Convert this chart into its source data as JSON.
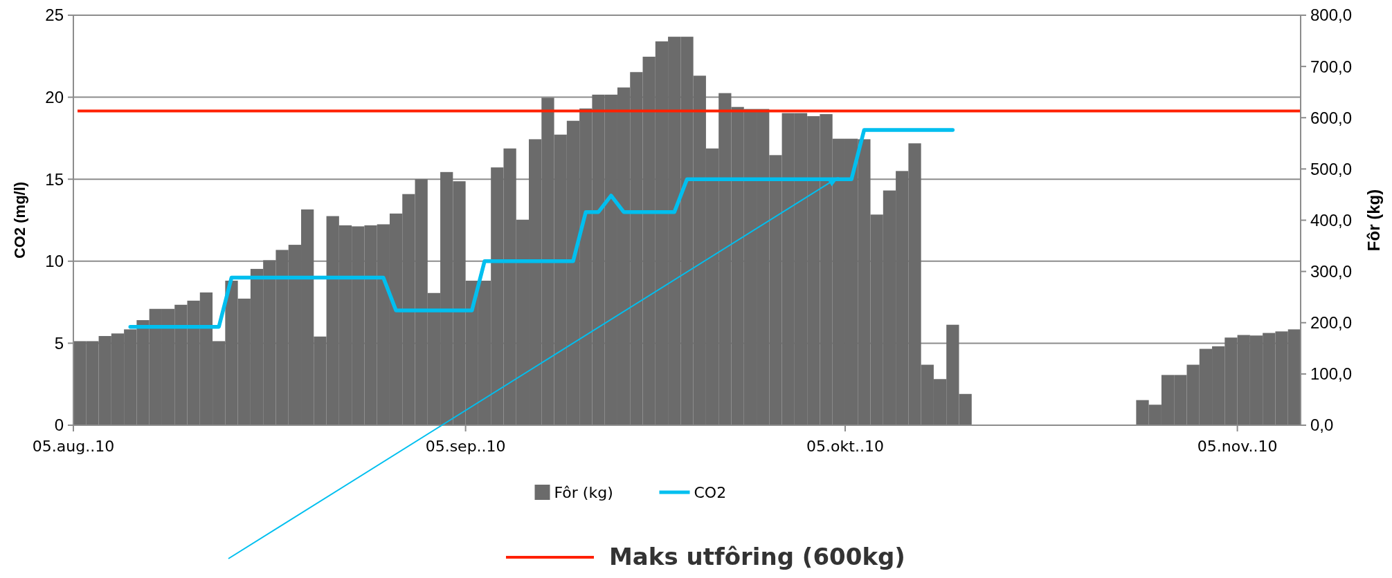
{
  "chart_data": {
    "type": "bar",
    "xlabel": null,
    "ylabel": "CO2 (mg/l)",
    "y2label": "Fôr (kg)",
    "x": [
      "2010-08-05T12:00",
      "2010-08-06T12:00",
      "2010-08-07T12:00",
      "2010-08-08T12:00",
      "2010-08-09T12:00",
      "2010-08-10T12:00",
      "2010-08-11T12:00",
      "2010-08-12T12:00",
      "2010-08-13T12:00",
      "2010-08-14T12:00",
      "2010-08-15T12:00",
      "2010-08-16T12:00",
      "2010-08-17T12:00",
      "2010-08-18T12:00",
      "2010-08-19T12:00",
      "2010-08-20T12:00",
      "2010-08-21T12:00",
      "2010-08-22T12:00",
      "2010-08-23T12:00",
      "2010-08-24T12:00",
      "2010-08-25T12:00",
      "2010-08-26T12:00",
      "2010-08-27T12:00",
      "2010-08-28T12:00",
      "2010-08-29T12:00",
      "2010-08-30T12:00",
      "2010-08-31T12:00",
      "2010-09-01T12:00",
      "2010-09-02T12:00",
      "2010-09-03T12:00",
      "2010-09-04T12:00",
      "2010-09-05T12:00",
      "2010-09-06T12:00",
      "2010-09-07T12:00",
      "2010-09-08T12:00",
      "2010-09-09T12:00",
      "2010-09-10T12:00",
      "2010-09-11T12:00",
      "2010-09-12T12:00",
      "2010-09-13T12:00",
      "2010-09-14T12:00",
      "2010-09-15T12:00",
      "2010-09-16T12:00",
      "2010-09-17T12:00",
      "2010-09-18T12:00",
      "2010-09-19T12:00",
      "2010-09-20T12:00",
      "2010-09-21T12:00",
      "2010-09-22T12:00",
      "2010-09-23T12:00",
      "2010-09-24T12:00",
      "2010-09-25T12:00",
      "2010-09-26T12:00",
      "2010-09-27T12:00",
      "2010-09-28T12:00",
      "2010-09-29T12:00",
      "2010-09-30T12:00",
      "2010-10-01T12:00",
      "2010-10-02T12:00",
      "2010-10-03T12:00",
      "2010-10-04T12:00",
      "2010-10-05T12:00",
      "2010-10-06T12:00",
      "2010-10-07T12:00",
      "2010-10-08T12:00",
      "2010-10-09T12:00",
      "2010-10-10T12:00",
      "2010-10-11T12:00",
      "2010-10-12T12:00",
      "2010-10-13T12:00",
      "2010-10-14T12:00",
      "2010-10-15T12:00",
      "2010-10-16T12:00",
      "2010-10-17T12:00",
      "2010-10-18T12:00",
      "2010-10-19T12:00",
      "2010-10-20T12:00",
      "2010-10-21T12:00",
      "2010-10-22T12:00",
      "2010-10-23T12:00",
      "2010-10-24T12:00",
      "2010-10-25T12:00",
      "2010-10-26T12:00",
      "2010-10-27T12:00",
      "2010-10-28T12:00",
      "2010-10-29T12:00",
      "2010-10-30T12:00",
      "2010-10-31T12:00",
      "2010-11-01T12:00",
      "2010-11-02T12:00",
      "2010-11-03T12:00",
      "2010-11-04T12:00",
      "2010-11-05T12:00",
      "2010-11-06T12:00",
      "2010-11-07T12:00",
      "2010-11-08T12:00",
      "2010-11-09T12:00"
    ],
    "series": [
      {
        "name": "Fôr (kg)",
        "axis": "y2",
        "color": "#6b6b6b",
        "values": [
          164,
          164,
          174,
          179,
          187,
          205,
          227,
          227,
          235,
          243,
          259,
          164,
          282,
          247,
          305,
          322,
          342,
          352,
          421,
          173,
          408,
          390,
          388,
          390,
          392,
          413,
          451,
          480,
          258,
          494,
          476,
          282,
          282,
          503,
          540,
          401,
          558,
          639,
          567,
          594,
          618,
          645,
          645,
          659,
          689,
          719,
          749,
          758,
          758,
          682,
          540,
          648,
          621,
          617,
          617,
          527,
          609,
          609,
          603,
          607,
          559,
          559,
          558,
          411,
          458,
          496,
          550,
          118,
          90,
          196,
          61,
          null,
          null,
          null,
          null,
          null,
          null,
          null,
          null,
          null,
          null,
          null,
          null,
          null,
          49,
          40,
          98,
          98,
          118,
          149,
          154,
          171,
          176,
          175,
          180,
          183,
          187
        ]
      },
      {
        "name": "CO2",
        "type": "line",
        "color": "#00bfef",
        "values": [
          null,
          null,
          null,
          null,
          6,
          6,
          6,
          6,
          6,
          6,
          6,
          6,
          9,
          9,
          9,
          9,
          9,
          9,
          9,
          9,
          9,
          9,
          9,
          9,
          9,
          7,
          7,
          7,
          7,
          7,
          7,
          7,
          10,
          10,
          10,
          10,
          10,
          10,
          10,
          10,
          13,
          13,
          14,
          13,
          13,
          13,
          13,
          13,
          15,
          15,
          15,
          15,
          15,
          15,
          15,
          15,
          15,
          15,
          15,
          15,
          15,
          15,
          18,
          18,
          18,
          18,
          18,
          18,
          18,
          18,
          null,
          null,
          null,
          null,
          null,
          null,
          null,
          null,
          null,
          null,
          null,
          null,
          null,
          null,
          null,
          null,
          null,
          null,
          null,
          null,
          null,
          null,
          null,
          null,
          null,
          null,
          null
        ]
      }
    ],
    "xlim": [
      "2010-08-05",
      "2010-11-10"
    ],
    "xticks": [
      {
        "value": "2010-08-05",
        "label": "05.aug..10"
      },
      {
        "value": "2010-09-05",
        "label": "05.sep..10"
      },
      {
        "value": "2010-10-05",
        "label": "05.okt..10"
      },
      {
        "value": "2010-11-05",
        "label": "05.nov..10"
      }
    ],
    "ylim": [
      0,
      25
    ],
    "yticks": [
      0,
      5,
      10,
      15,
      20,
      25
    ],
    "y2lim": [
      0,
      800
    ],
    "y2ticks": [
      {
        "value": 0,
        "label": "0,0"
      },
      {
        "value": 100,
        "label": "100,0"
      },
      {
        "value": 200,
        "label": "200,0"
      },
      {
        "value": 300,
        "label": "300,0"
      },
      {
        "value": 400,
        "label": "400,0"
      },
      {
        "value": 500,
        "label": "500,0"
      },
      {
        "value": 600,
        "label": "600,0"
      },
      {
        "value": 700,
        "label": "700,0"
      },
      {
        "value": 800,
        "label": "800,0"
      }
    ],
    "ref_lines": [
      {
        "axis": "y2",
        "value": 613,
        "label": "Maks utfôring (600kg)",
        "color": "#ff2000"
      }
    ],
    "grid": "y",
    "legend": "bottom"
  }
}
